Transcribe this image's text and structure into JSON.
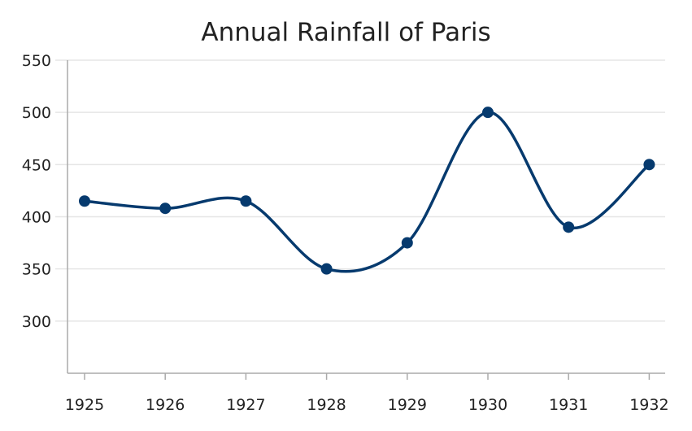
{
  "chart_data": {
    "type": "line",
    "title": "Annual Rainfall of Paris",
    "xlabel": "",
    "ylabel": "",
    "categories": [
      "1925",
      "1926",
      "1927",
      "1928",
      "1929",
      "1930",
      "1931",
      "1932"
    ],
    "series": [
      {
        "values": [
          415,
          408,
          415,
          350,
          375,
          500,
          390,
          450
        ]
      }
    ],
    "ylim": [
      250,
      550
    ],
    "yticks": [
      300,
      350,
      400,
      450,
      500,
      550
    ],
    "grid": true,
    "legend": "none",
    "smooth": true,
    "colors": {
      "line": "#063a6e",
      "marker": "#063a6e",
      "grid": "#e6e6e6",
      "axis": "#aaaaaa",
      "text": "#222222"
    }
  }
}
